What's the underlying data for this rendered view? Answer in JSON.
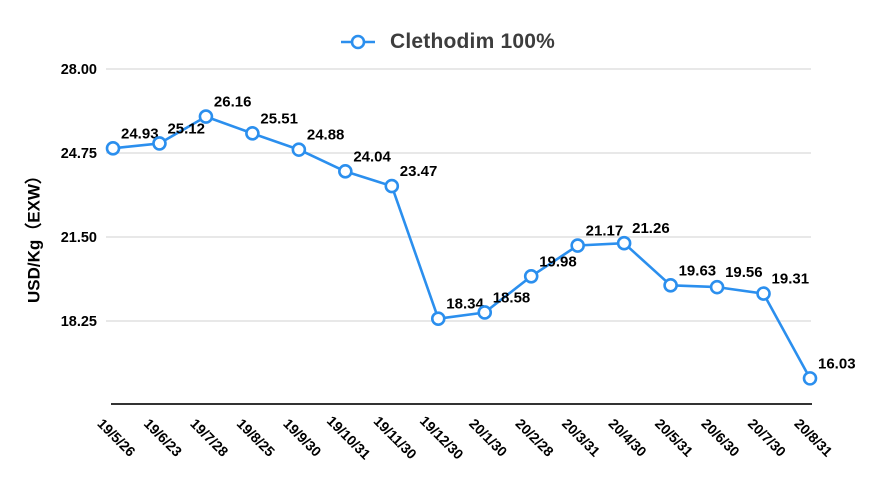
{
  "chart_data": {
    "type": "line",
    "title": "Clethodim 100%",
    "ylabel": "USD/Kg（EXW）",
    "xlabel": "",
    "categories": [
      "19/5/26",
      "19/6/23",
      "19/7/28",
      "19/8/25",
      "19/9/30",
      "19/10/31",
      "19/11/30",
      "19/12/30",
      "20/1/30",
      "20/2/28",
      "20/3/31",
      "20/4/30",
      "20/5/31",
      "20/6/30",
      "20/7/30",
      "20/8/31"
    ],
    "values": [
      24.93,
      25.12,
      26.16,
      25.51,
      24.88,
      24.04,
      23.47,
      18.34,
      18.58,
      19.98,
      21.17,
      21.26,
      19.63,
      19.56,
      19.31,
      16.03
    ],
    "yticks": [
      "28.00",
      "24.75",
      "21.50",
      "18.25"
    ],
    "ytick_values": [
      28.0,
      24.75,
      21.5,
      18.25
    ],
    "ylim": [
      15.0,
      28.0
    ],
    "grid": true,
    "legend_position": "top-center",
    "colors": {
      "line": "#2b8fee",
      "marker_fill": "#ffffff",
      "data_label": "#000000",
      "legend_text": "#3d3d3d",
      "axis_line": "#333333",
      "gridline": "#d9d9d9",
      "background": "#ffffff"
    }
  }
}
